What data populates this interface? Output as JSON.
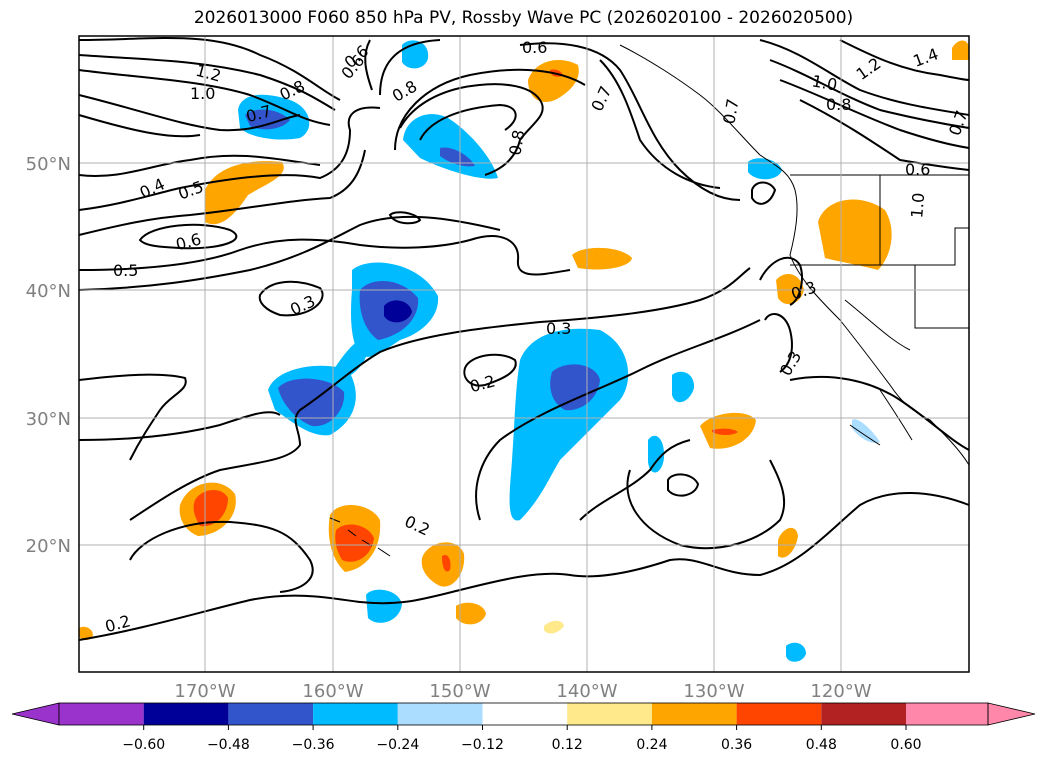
{
  "title": "2026013000 F060 850 hPa PV, Rossby Wave PC (2026020100 - 2026020500)",
  "map": {
    "lon_range": [
      -180,
      -110
    ],
    "lat_range": [
      10,
      60
    ],
    "gridlines": true,
    "lon_labels": [
      "170°W",
      "160°W",
      "150°W",
      "140°W",
      "130°W",
      "120°W"
    ],
    "lat_labels": [
      "50°N",
      "40°N",
      "30°N",
      "20°N"
    ],
    "contour_labels": [
      "1.2",
      "1.0",
      "0.8",
      "0.7",
      "0.6",
      "0.5",
      "0.4",
      "0.5",
      "0.6",
      "0.3",
      "0.3",
      "0.2",
      "0.2",
      "0.2",
      "0.8",
      "0.7",
      "0.6",
      "0.8",
      "1.2",
      "1.4",
      "1.0",
      "0.8",
      "0.6",
      "0.7",
      "1.0",
      "0.3",
      "0.3",
      "0.6",
      "0.7"
    ]
  },
  "colorbar": {
    "ticks": [
      "−0.60",
      "−0.48",
      "−0.36",
      "−0.24",
      "−0.12",
      "0.12",
      "0.24",
      "0.36",
      "0.48",
      "0.60"
    ],
    "colors": [
      "#9933cc",
      "#000099",
      "#3355cc",
      "#00bbff",
      "#aaddff",
      "#ffffff",
      "#ffe98a",
      "#ffa500",
      "#ff4500",
      "#b22222",
      "#ff88aa"
    ],
    "extend": "both"
  },
  "colors": {
    "frame": "#000000",
    "grid": "#b0b0b0",
    "tick_label": "#808080"
  }
}
